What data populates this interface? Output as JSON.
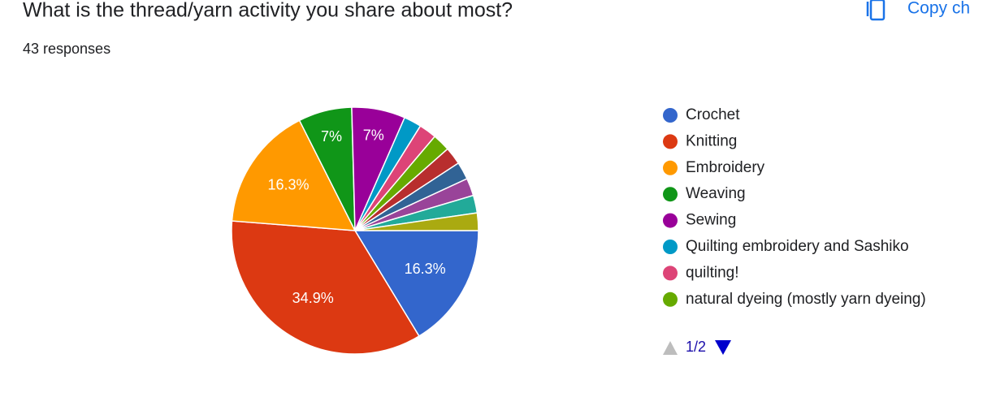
{
  "chart_data": {
    "type": "pie",
    "title": "What is the thread/yarn activity you share about most?",
    "subtitle": "43 responses",
    "copy_button": "Copy ch",
    "legend_page": "1/2",
    "categories": [
      "Crochet",
      "Knitting",
      "Embroidery",
      "Weaving",
      "Sewing",
      "Quilting embroidery and Sashiko",
      "quilting!",
      "natural dyeing (mostly yarn dyeing)",
      null,
      null,
      null,
      null,
      null
    ],
    "values": [
      16.3,
      34.9,
      16.3,
      7,
      7,
      2.3,
      2.3,
      2.3,
      2.3,
      2.3,
      2.3,
      2.3,
      2.3
    ],
    "value_labels": [
      "16.3%",
      "34.9%",
      "16.3%",
      "7%",
      "7%",
      null,
      null,
      null,
      null,
      null,
      null,
      null,
      null
    ],
    "colors": [
      "#3366cc",
      "#dc3912",
      "#ff9900",
      "#109618",
      "#990099",
      "#0099c6",
      "#dd4477",
      "#66aa00",
      "#b82e2e",
      "#316395",
      "#994499",
      "#22aa99",
      "#aaaa11"
    ],
    "legend": "right"
  }
}
